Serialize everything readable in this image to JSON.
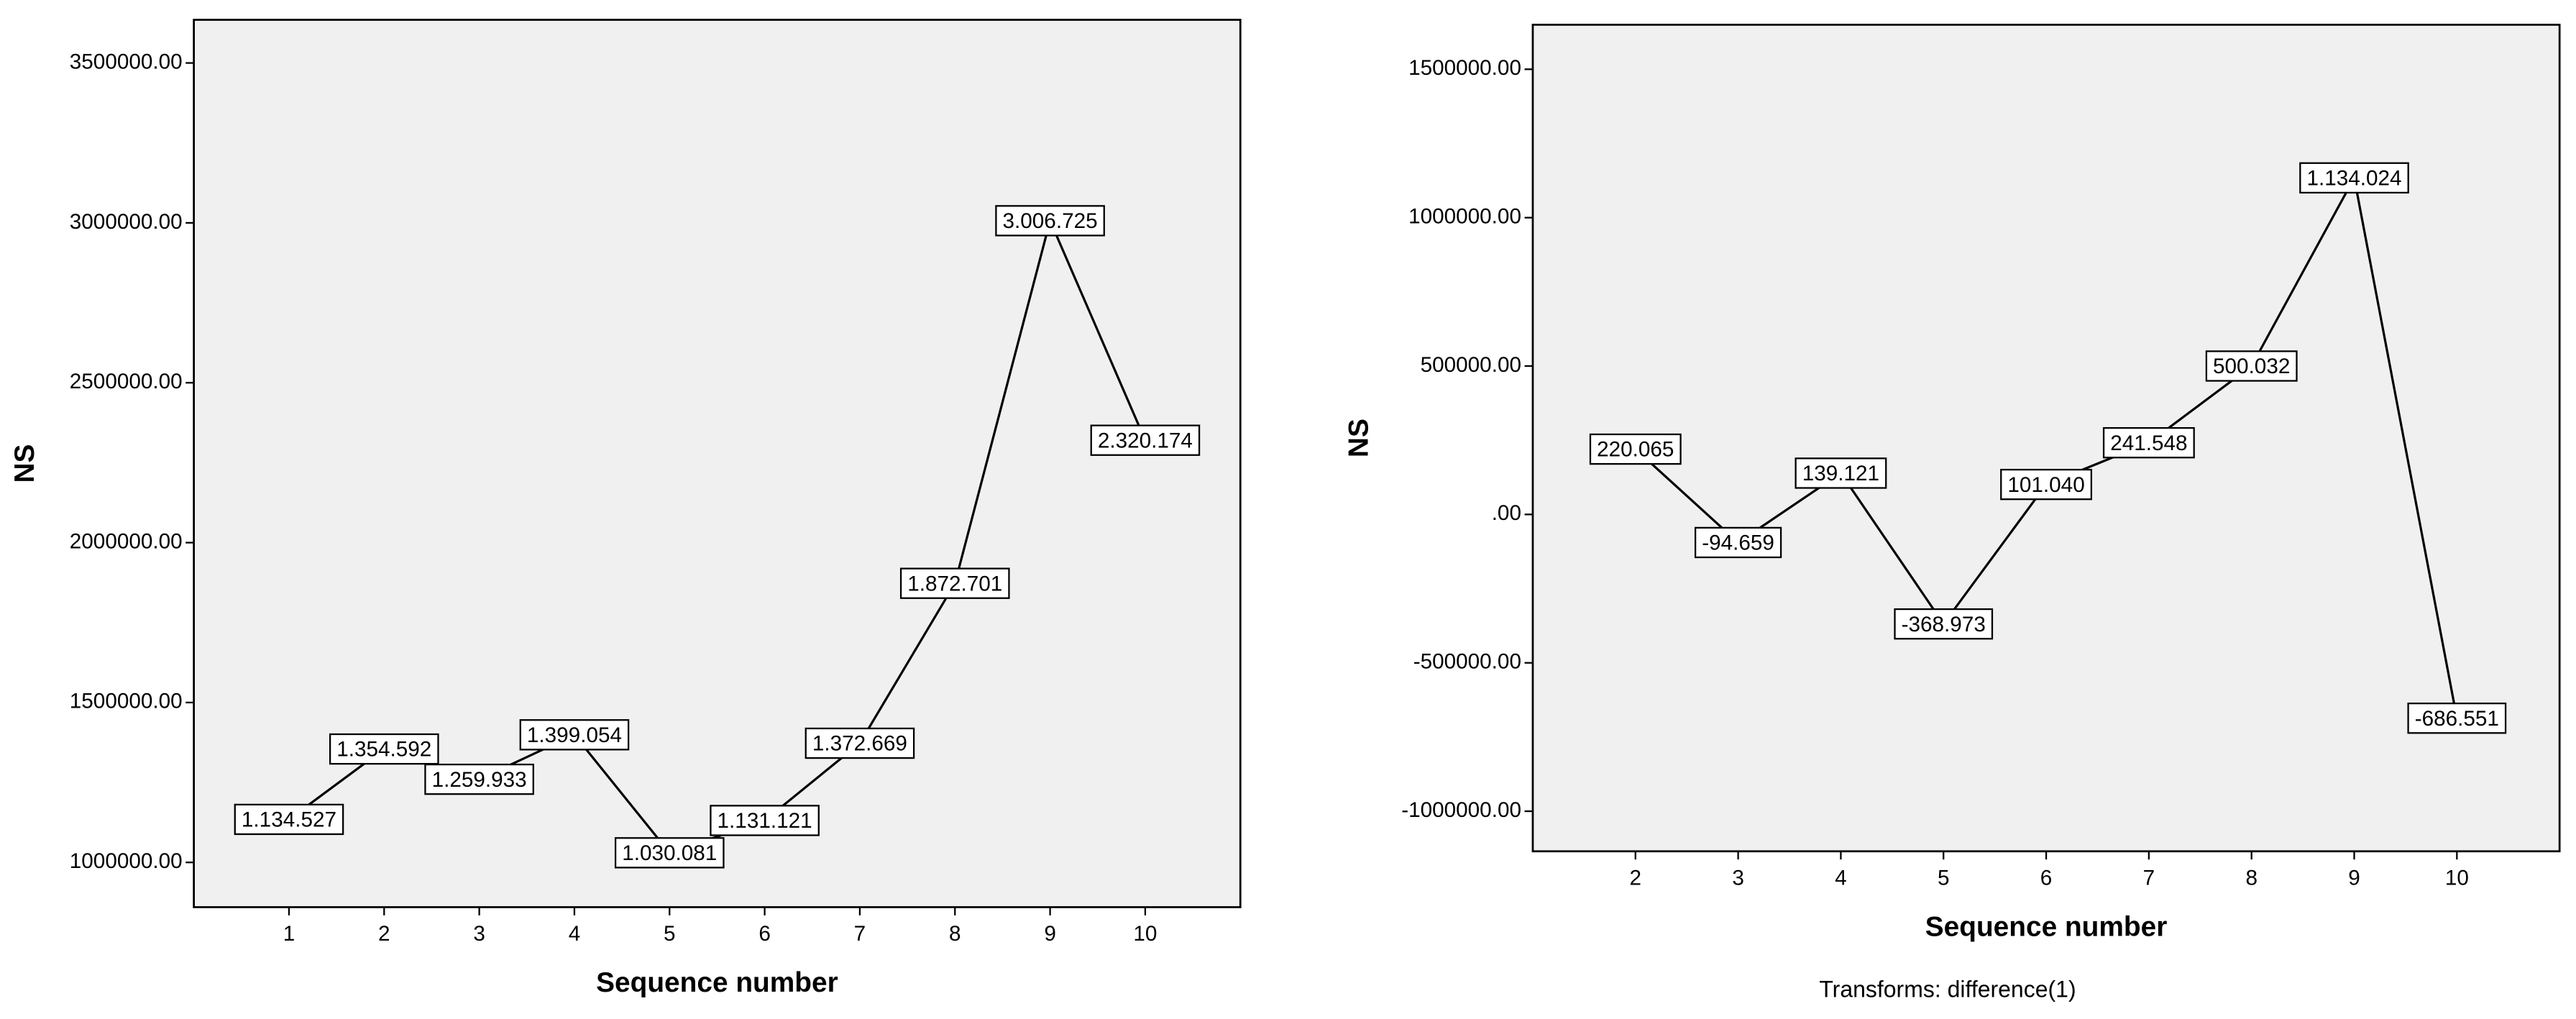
{
  "chart_data": [
    {
      "type": "line",
      "y_label": "NS",
      "x_label": "Sequence number",
      "x": [
        1,
        2,
        3,
        4,
        5,
        6,
        7,
        8,
        9,
        10
      ],
      "xlim": [
        0,
        11
      ],
      "xticks": [
        1,
        2,
        3,
        4,
        5,
        6,
        7,
        8,
        9,
        10
      ],
      "ylim": [
        860000,
        3635000
      ],
      "yticks": [
        {
          "value": 1000000,
          "label": "1000000.00"
        },
        {
          "value": 1500000,
          "label": "1500000.00"
        },
        {
          "value": 2000000,
          "label": "2000000.00"
        },
        {
          "value": 2500000,
          "label": "2500000.00"
        },
        {
          "value": 3000000,
          "label": "3000000.00"
        },
        {
          "value": 3500000,
          "label": "3500000.00"
        }
      ],
      "grid": false,
      "series": [
        {
          "color": "#000000",
          "values": [
            1134527,
            1354592,
            1259933,
            1399054,
            1030081,
            1131121,
            1372669,
            1872701,
            3006725,
            2320174
          ],
          "value_labels": [
            "1.134.527",
            "1.354.592",
            "1.259.933",
            "1.399.054",
            "1.030.081",
            "1.131.121",
            "1.372.669",
            "1.872.701",
            "3.006.725",
            "2.320.174"
          ]
        }
      ]
    },
    {
      "type": "line",
      "y_label": "NS",
      "x_label": "Sequence number",
      "footnote": "Transforms: difference(1)",
      "x": [
        2,
        3,
        4,
        5,
        6,
        7,
        8,
        9,
        10
      ],
      "xlim": [
        1,
        11
      ],
      "xticks": [
        2,
        3,
        4,
        5,
        6,
        7,
        8,
        9,
        10
      ],
      "ylim": [
        -1135000,
        1650000
      ],
      "yticks": [
        {
          "value": -1000000,
          "label": "-1000000.00"
        },
        {
          "value": -500000,
          "label": "-500000.00"
        },
        {
          "value": 0,
          "label": ".00"
        },
        {
          "value": 500000,
          "label": "500000.00"
        },
        {
          "value": 1000000,
          "label": "1000000.00"
        },
        {
          "value": 1500000,
          "label": "1500000.00"
        }
      ],
      "grid": false,
      "series": [
        {
          "color": "#000000",
          "values": [
            220065,
            -94659,
            139121,
            -368973,
            101040,
            241548,
            500032,
            1134024,
            -686551
          ],
          "value_labels": [
            "220.065",
            "-94.659",
            "139.121",
            "-368.973",
            "101.040",
            "241.548",
            "500.032",
            "1.134.024",
            "-686.551"
          ]
        }
      ]
    }
  ]
}
